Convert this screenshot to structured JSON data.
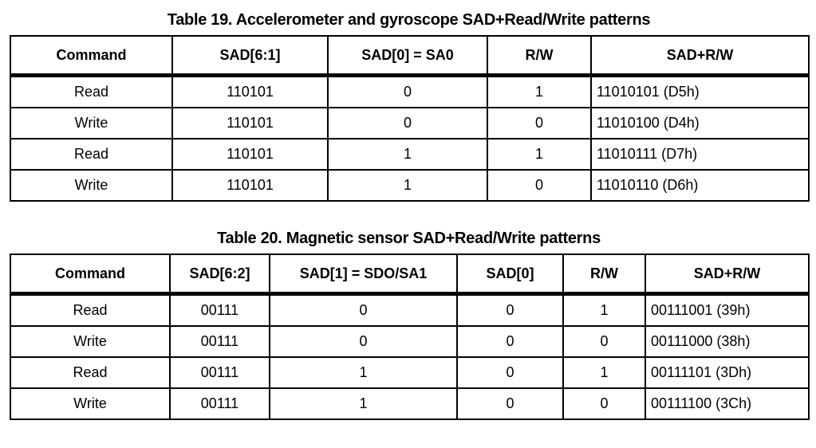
{
  "page": {
    "background_color": "#ffffff",
    "text_color": "#000000",
    "border_color": "#000000"
  },
  "tables": [
    {
      "title": "Table 19. Accelerometer and gyroscope SAD+Read/Write patterns",
      "columns": [
        "Command",
        "SAD[6:1]",
        "SAD[0] = SA0",
        "R/W",
        "SAD+R/W"
      ],
      "col_widths": [
        "203px",
        "195px",
        "200px",
        "130px",
        "273px"
      ],
      "rows": [
        [
          "Read",
          "110101",
          "0",
          "1",
          "11010101 (D5h)"
        ],
        [
          "Write",
          "110101",
          "0",
          "0",
          "11010100 (D4h)"
        ],
        [
          "Read",
          "110101",
          "1",
          "1",
          "11010111 (D7h)"
        ],
        [
          "Write",
          "110101",
          "1",
          "0",
          "11010110 (D6h)"
        ]
      ]
    },
    {
      "title": "Table 20. Magnetic sensor SAD+Read/Write patterns",
      "columns": [
        "Command",
        "SAD[6:2]",
        "SAD[1] = SDO/SA1",
        "SAD[0]",
        "R/W",
        "SAD+R/W"
      ],
      "col_widths": [
        "200px",
        "125px",
        "235px",
        "133px",
        "103px",
        "205px"
      ],
      "rows": [
        [
          "Read",
          "00111",
          "0",
          "0",
          "1",
          "00111001 (39h)"
        ],
        [
          "Write",
          "00111",
          "0",
          "0",
          "0",
          "00111000 (38h)"
        ],
        [
          "Read",
          "00111",
          "1",
          "0",
          "1",
          "00111101 (3Dh)"
        ],
        [
          "Write",
          "00111",
          "1",
          "0",
          "0",
          "00111100 (3Ch)"
        ]
      ]
    }
  ]
}
